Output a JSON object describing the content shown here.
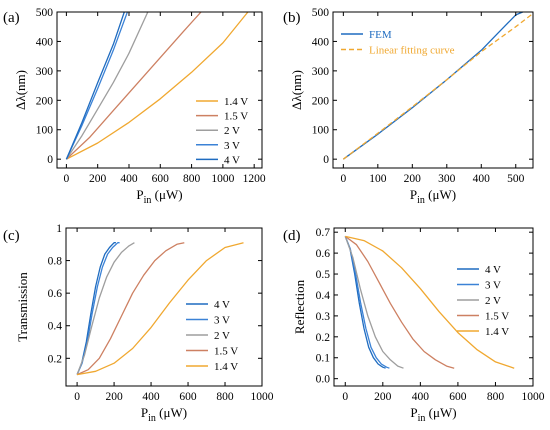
{
  "colors": {
    "v1.4": "#f0a830",
    "v1.5": "#cd8062",
    "v2": "#9e9e9e",
    "v3": "#3b82d6",
    "v4": "#1f6cc0",
    "fem": "#1f6cc0",
    "fit": "#f0a830"
  },
  "chart_data": [
    {
      "panel": "(a)",
      "type": "line",
      "xlabel_main": "P",
      "xlabel_sub": "in",
      "xlabel_unit": " (μW)",
      "ylabel": "Δλ(nm)",
      "xlim": [
        -60,
        1250
      ],
      "ylim": [
        -30,
        500
      ],
      "xticks": [
        0,
        200,
        400,
        600,
        800,
        1000,
        1200
      ],
      "yticks": [
        0,
        100,
        200,
        300,
        400,
        500
      ],
      "legend_position": "bottom-right",
      "series": [
        {
          "name": "1.4 V",
          "color_key": "v1.4",
          "x": [
            0,
            200,
            400,
            600,
            800,
            1000,
            1160
          ],
          "y": [
            0,
            55,
            125,
            205,
            295,
            395,
            500
          ]
        },
        {
          "name": "1.5 V",
          "color_key": "v1.5",
          "x": [
            0,
            150,
            300,
            450,
            600,
            750,
            860
          ],
          "y": [
            0,
            75,
            165,
            255,
            345,
            435,
            500
          ]
        },
        {
          "name": "2 V",
          "color_key": "v2",
          "x": [
            0,
            100,
            200,
            300,
            400,
            520
          ],
          "y": [
            0,
            80,
            170,
            260,
            360,
            500
          ]
        },
        {
          "name": "3 V",
          "color_key": "v3",
          "x": [
            0,
            100,
            200,
            300,
            390
          ],
          "y": [
            0,
            115,
            240,
            370,
            500
          ]
        },
        {
          "name": "4 V",
          "color_key": "v4",
          "x": [
            0,
            100,
            200,
            300,
            370
          ],
          "y": [
            0,
            125,
            260,
            390,
            500
          ]
        }
      ]
    },
    {
      "panel": "(b)",
      "type": "line",
      "xlabel_main": "P",
      "xlabel_sub": "in",
      "xlabel_unit": " (μW)",
      "ylabel": "Δλ(nm)",
      "xlim": [
        -30,
        550
      ],
      "ylim": [
        -30,
        500
      ],
      "xticks": [
        0,
        100,
        200,
        300,
        400,
        500
      ],
      "yticks": [
        0,
        100,
        200,
        300,
        400,
        500
      ],
      "legend_position": "top-left",
      "series": [
        {
          "name": "FEM",
          "color_key": "fem",
          "dash": false,
          "x": [
            0,
            100,
            200,
            300,
            400,
            450,
            500,
            520
          ],
          "y": [
            0,
            85,
            175,
            270,
            370,
            430,
            490,
            500
          ]
        },
        {
          "name": "Linear fitting curve",
          "color_key": "fit",
          "dash": true,
          "x": [
            0,
            100,
            200,
            300,
            400,
            500,
            550
          ],
          "y": [
            0,
            88,
            178,
            270,
            365,
            450,
            495
          ]
        }
      ]
    },
    {
      "panel": "(c)",
      "type": "line",
      "xlabel_main": "P",
      "xlabel_sub": "in",
      "xlabel_unit": " (μW)",
      "ylabel": "Transmission",
      "xlim": [
        -60,
        1000
      ],
      "ylim": [
        0.03,
        1.0
      ],
      "xticks": [
        0,
        200,
        400,
        600,
        800,
        1000
      ],
      "yticks": [
        0.2,
        0.4,
        0.6,
        0.8,
        1.0
      ],
      "legend_position": "bottom-right",
      "series": [
        {
          "name": "4 V",
          "color_key": "v4",
          "x": [
            0,
            25,
            50,
            75,
            100,
            125,
            150,
            175,
            200,
            210
          ],
          "y": [
            0.1,
            0.17,
            0.3,
            0.48,
            0.64,
            0.76,
            0.84,
            0.88,
            0.91,
            0.91
          ]
        },
        {
          "name": "3 V",
          "color_key": "v3",
          "x": [
            0,
            27,
            55,
            82,
            110,
            137,
            165,
            192,
            220,
            230
          ],
          "y": [
            0.1,
            0.17,
            0.3,
            0.48,
            0.64,
            0.76,
            0.84,
            0.88,
            0.91,
            0.91
          ]
        },
        {
          "name": "2 V",
          "color_key": "v2",
          "x": [
            0,
            40,
            80,
            120,
            160,
            200,
            240,
            280,
            310
          ],
          "y": [
            0.1,
            0.22,
            0.4,
            0.57,
            0.7,
            0.79,
            0.85,
            0.89,
            0.91
          ]
        },
        {
          "name": "1.5 V",
          "color_key": "v1.5",
          "x": [
            0,
            60,
            120,
            180,
            240,
            300,
            360,
            420,
            480,
            540,
            580
          ],
          "y": [
            0.1,
            0.13,
            0.2,
            0.32,
            0.46,
            0.6,
            0.71,
            0.8,
            0.86,
            0.9,
            0.91
          ]
        },
        {
          "name": "1.4 V",
          "color_key": "v1.4",
          "x": [
            0,
            100,
            200,
            300,
            400,
            500,
            600,
            700,
            800,
            900
          ],
          "y": [
            0.1,
            0.12,
            0.17,
            0.26,
            0.39,
            0.54,
            0.68,
            0.8,
            0.88,
            0.91
          ]
        }
      ]
    },
    {
      "panel": "(d)",
      "type": "line",
      "xlabel_main": "P",
      "xlabel_sub": "in",
      "xlabel_unit": " (μW)",
      "ylabel": "Reflection",
      "xlim": [
        -60,
        1000
      ],
      "ylim": [
        -0.035,
        0.72
      ],
      "xticks": [
        0,
        200,
        400,
        600,
        800,
        1000
      ],
      "yticks": [
        0.0,
        0.1,
        0.2,
        0.3,
        0.4,
        0.5,
        0.6,
        0.7
      ],
      "ytick_labels": [
        "0.0",
        "0.1",
        "0.2",
        "0.3",
        "0.4",
        "0.5",
        "0.6",
        "0.7"
      ],
      "legend_position": "top-right",
      "series": [
        {
          "name": "4 V",
          "color_key": "v4",
          "x": [
            0,
            25,
            50,
            75,
            100,
            125,
            150,
            175,
            200,
            215
          ],
          "y": [
            0.68,
            0.62,
            0.5,
            0.36,
            0.24,
            0.15,
            0.1,
            0.07,
            0.055,
            0.05
          ]
        },
        {
          "name": "3 V",
          "color_key": "v3",
          "x": [
            0,
            27,
            55,
            82,
            110,
            137,
            165,
            192,
            220,
            235
          ],
          "y": [
            0.68,
            0.62,
            0.5,
            0.36,
            0.24,
            0.15,
            0.1,
            0.07,
            0.055,
            0.05
          ]
        },
        {
          "name": "2 V",
          "color_key": "v2",
          "x": [
            0,
            40,
            80,
            120,
            160,
            200,
            240,
            280,
            310
          ],
          "y": [
            0.68,
            0.58,
            0.43,
            0.3,
            0.2,
            0.13,
            0.09,
            0.06,
            0.05
          ]
        },
        {
          "name": "1.5 V",
          "color_key": "v1.5",
          "x": [
            0,
            60,
            120,
            180,
            240,
            300,
            360,
            420,
            480,
            540,
            580
          ],
          "y": [
            0.68,
            0.64,
            0.56,
            0.46,
            0.36,
            0.27,
            0.19,
            0.13,
            0.09,
            0.06,
            0.05
          ]
        },
        {
          "name": "1.4 V",
          "color_key": "v1.4",
          "x": [
            0,
            100,
            200,
            300,
            400,
            500,
            600,
            700,
            800,
            900
          ],
          "y": [
            0.68,
            0.66,
            0.61,
            0.53,
            0.43,
            0.32,
            0.22,
            0.14,
            0.08,
            0.05
          ]
        }
      ]
    }
  ]
}
